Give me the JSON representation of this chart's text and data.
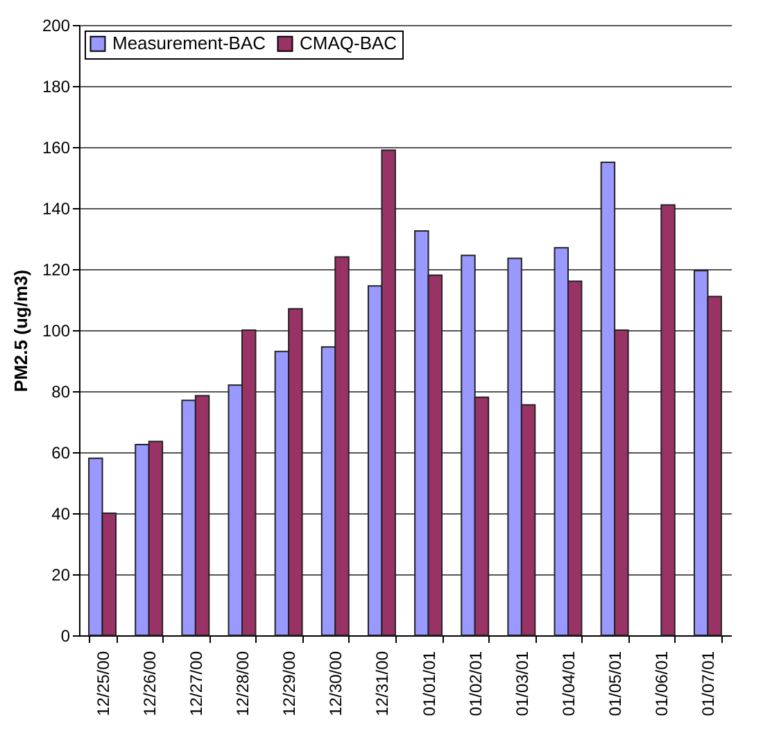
{
  "chart_data": {
    "type": "bar",
    "ylabel": "PM2.5 (ug/m3)",
    "categories": [
      "12/25/00",
      "12/26/00",
      "12/27/00",
      "12/28/00",
      "12/29/00",
      "12/30/00",
      "12/31/00",
      "01/01/01",
      "01/02/01",
      "01/03/01",
      "01/04/01",
      "01/05/01",
      "01/06/01",
      "01/07/01"
    ],
    "series": [
      {
        "name": "Measurement-BAC",
        "color": "#9999ff",
        "values": [
          58,
          62.5,
          77,
          82,
          93,
          94.5,
          114.5,
          132.5,
          124.5,
          123.5,
          127,
          155,
          null,
          119.5
        ]
      },
      {
        "name": "CMAQ-BAC",
        "color": "#993366",
        "values": [
          40,
          63.5,
          78.5,
          100,
          107,
          124,
          159,
          118,
          78,
          75.5,
          116,
          100,
          141,
          111
        ]
      }
    ],
    "ylim": [
      0,
      200
    ],
    "yticks": [
      0,
      20,
      40,
      60,
      80,
      100,
      120,
      140,
      160,
      180,
      200
    ],
    "grid": "y",
    "legend": "top left"
  }
}
